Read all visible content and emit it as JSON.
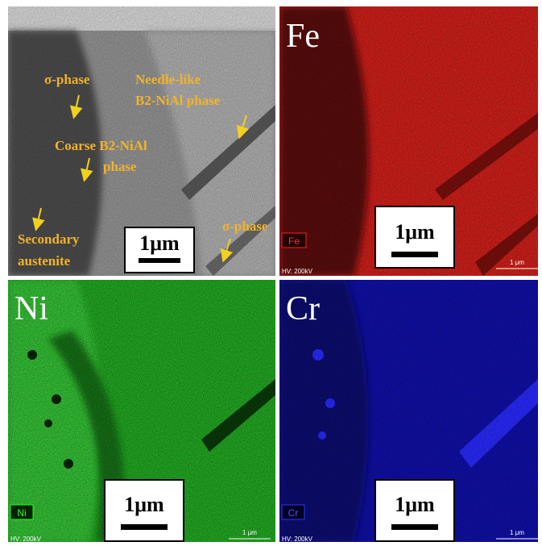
{
  "panels": [
    {
      "annotations": [
        "σ-phase",
        "Needle-like",
        "B2-NiAl phase",
        "Coarse B2-NiAl",
        "phase",
        "Secondary",
        "austenite",
        "σ-phase"
      ],
      "scale_bar": "1μm"
    },
    {
      "element": "Fe",
      "tag": "Fe",
      "scale_bar": "1μm",
      "hv": "HV: 200kV",
      "micro_scale": "1 μm"
    },
    {
      "element": "Ni",
      "tag": "Ni",
      "scale_bar": "1μm",
      "hv": "HV: 200kV",
      "micro_scale": "1 μm"
    },
    {
      "element": "Cr",
      "tag": "Cr",
      "scale_bar": "1μm",
      "hv": "HV: 200kV",
      "micro_scale": "1 μm"
    }
  ]
}
